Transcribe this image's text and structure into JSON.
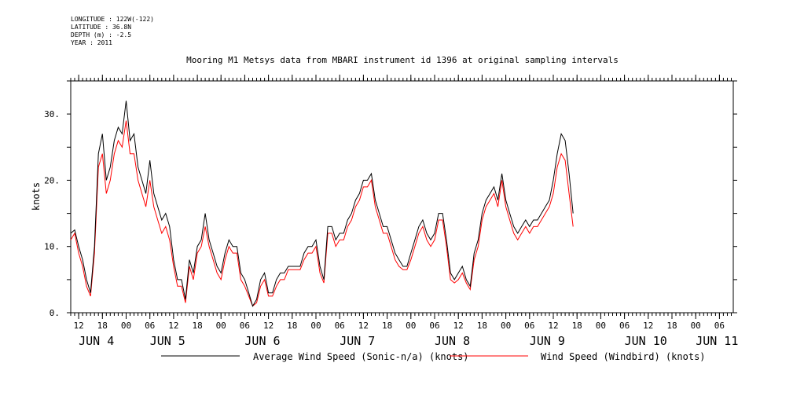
{
  "metadata": {
    "longitude": "LONGITUDE : 122W(-122)",
    "latitude": "LATITUDE : 36.8N",
    "depth": "DEPTH (m) : -2.5",
    "year": "YEAR : 2011"
  },
  "chart_data": {
    "type": "line",
    "title": "Mooring M1 Metsys data from MBARI instrument id 1396 at original sampling intervals",
    "ylabel": "knots",
    "xlabel": "",
    "ylim": [
      0,
      35
    ],
    "yticks": [
      0,
      10,
      20,
      30
    ],
    "ytick_labels": [
      "0.",
      "10.",
      "20.",
      "30."
    ],
    "xlim_hours": [
      -14,
      113
    ],
    "x_units": "hours relative to JUN 4 00:00, 2011",
    "hour_ticks": [
      {
        "h": -12,
        "label": "12"
      },
      {
        "h": -6,
        "label": "18"
      },
      {
        "h": 0,
        "label": "00"
      },
      {
        "h": 6,
        "label": "06"
      },
      {
        "h": 12,
        "label": "12"
      },
      {
        "h": 18,
        "label": "18"
      },
      {
        "h": 24,
        "label": "00"
      },
      {
        "h": 30,
        "label": "06"
      },
      {
        "h": 36,
        "label": "12"
      },
      {
        "h": 42,
        "label": "18"
      },
      {
        "h": 48,
        "label": "00"
      },
      {
        "h": 54,
        "label": "06"
      },
      {
        "h": 60,
        "label": "12"
      },
      {
        "h": 66,
        "label": "18"
      },
      {
        "h": 72,
        "label": "00"
      },
      {
        "h": 78,
        "label": "06"
      },
      {
        "h": 84,
        "label": "12"
      },
      {
        "h": 90,
        "label": "18"
      },
      {
        "h": 96,
        "label": "00"
      },
      {
        "h": 102,
        "label": "06"
      },
      {
        "h": 108,
        "label": "12"
      },
      {
        "h": 114,
        "label": "18"
      },
      {
        "h": 120,
        "label": "00"
      },
      {
        "h": 126,
        "label": "06"
      },
      {
        "h": 132,
        "label": "12"
      },
      {
        "h": 138,
        "label": "18"
      },
      {
        "h": 144,
        "label": "00"
      },
      {
        "h": 150,
        "label": "06"
      }
    ],
    "day_labels": [
      {
        "h": -12,
        "label": "JUN  4"
      },
      {
        "h": 6,
        "label": "JUN  5"
      },
      {
        "h": 30,
        "label": "JUN  6"
      },
      {
        "h": 54,
        "label": "JUN  7"
      },
      {
        "h": 78,
        "label": "JUN  8"
      },
      {
        "h": 102,
        "label": "JUN  9"
      },
      {
        "h": 126,
        "label": "JUN 10"
      },
      {
        "h": 144,
        "label": "JUN 11"
      }
    ],
    "series": [
      {
        "name": "Average Wind Speed (Sonic-n/a) (knots)",
        "color": "#000000",
        "points": [
          [
            -14,
            12
          ],
          [
            -13,
            12.5
          ],
          [
            -12,
            10
          ],
          [
            -11,
            8
          ],
          [
            -10,
            5
          ],
          [
            -9,
            3
          ],
          [
            -8,
            10
          ],
          [
            -7,
            24
          ],
          [
            -6,
            27
          ],
          [
            -5,
            20
          ],
          [
            -4,
            22
          ],
          [
            -3,
            26
          ],
          [
            -2,
            28
          ],
          [
            -1,
            27
          ],
          [
            0,
            32
          ],
          [
            1,
            26
          ],
          [
            2,
            27
          ],
          [
            3,
            22
          ],
          [
            4,
            20
          ],
          [
            5,
            18
          ],
          [
            6,
            23
          ],
          [
            7,
            18
          ],
          [
            8,
            16
          ],
          [
            9,
            14
          ],
          [
            10,
            15
          ],
          [
            11,
            13
          ],
          [
            12,
            8
          ],
          [
            13,
            5
          ],
          [
            14,
            5
          ],
          [
            15,
            2
          ],
          [
            16,
            8
          ],
          [
            17,
            6
          ],
          [
            18,
            10
          ],
          [
            19,
            11
          ],
          [
            20,
            15
          ],
          [
            21,
            11
          ],
          [
            22,
            9
          ],
          [
            23,
            7
          ],
          [
            24,
            6
          ],
          [
            25,
            9
          ],
          [
            26,
            11
          ],
          [
            27,
            10
          ],
          [
            28,
            10
          ],
          [
            29,
            6
          ],
          [
            30,
            5
          ],
          [
            31,
            3
          ],
          [
            32,
            1
          ],
          [
            33,
            2
          ],
          [
            34,
            5
          ],
          [
            35,
            6
          ],
          [
            36,
            3
          ],
          [
            37,
            3
          ],
          [
            38,
            5
          ],
          [
            39,
            6
          ],
          [
            40,
            6
          ],
          [
            41,
            7
          ],
          [
            42,
            7
          ],
          [
            43,
            7
          ],
          [
            44,
            7
          ],
          [
            45,
            9
          ],
          [
            46,
            10
          ],
          [
            47,
            10
          ],
          [
            48,
            11
          ],
          [
            49,
            7
          ],
          [
            50,
            5
          ],
          [
            51,
            13
          ],
          [
            52,
            13
          ],
          [
            53,
            11
          ],
          [
            54,
            12
          ],
          [
            55,
            12
          ],
          [
            56,
            14
          ],
          [
            57,
            15
          ],
          [
            58,
            17
          ],
          [
            59,
            18
          ],
          [
            60,
            20
          ],
          [
            61,
            20
          ],
          [
            62,
            21
          ],
          [
            63,
            17
          ],
          [
            64,
            15
          ],
          [
            65,
            13
          ],
          [
            66,
            13
          ],
          [
            67,
            11
          ],
          [
            68,
            9
          ],
          [
            69,
            8
          ],
          [
            70,
            7
          ],
          [
            71,
            7
          ],
          [
            72,
            9
          ],
          [
            73,
            11
          ],
          [
            74,
            13
          ],
          [
            75,
            14
          ],
          [
            76,
            12
          ],
          [
            77,
            11
          ],
          [
            78,
            12
          ],
          [
            79,
            15
          ],
          [
            80,
            15
          ],
          [
            81,
            11
          ],
          [
            82,
            6
          ],
          [
            83,
            5
          ],
          [
            84,
            6
          ],
          [
            85,
            7
          ],
          [
            86,
            5
          ],
          [
            87,
            4
          ],
          [
            88,
            9
          ],
          [
            89,
            11
          ],
          [
            90,
            15
          ],
          [
            91,
            17
          ],
          [
            92,
            18
          ],
          [
            93,
            19
          ],
          [
            94,
            17
          ],
          [
            95,
            21
          ],
          [
            96,
            17
          ],
          [
            97,
            15
          ],
          [
            98,
            13
          ],
          [
            99,
            12
          ],
          [
            100,
            13
          ],
          [
            101,
            14
          ],
          [
            102,
            13
          ],
          [
            103,
            14
          ],
          [
            104,
            14
          ],
          [
            105,
            15
          ],
          [
            106,
            16
          ],
          [
            107,
            17
          ],
          [
            108,
            20
          ],
          [
            109,
            24
          ],
          [
            110,
            27
          ],
          [
            111,
            26
          ],
          [
            112,
            21
          ],
          [
            113,
            15
          ]
        ]
      },
      {
        "name": "Wind Speed (Windbird) (knots)",
        "color": "#ff0000",
        "points": [
          [
            -14,
            11
          ],
          [
            -13,
            12
          ],
          [
            -12,
            9
          ],
          [
            -11,
            7
          ],
          [
            -10,
            4
          ],
          [
            -9,
            2.5
          ],
          [
            -8,
            9
          ],
          [
            -7,
            22
          ],
          [
            -6,
            24
          ],
          [
            -5,
            18
          ],
          [
            -4,
            20
          ],
          [
            -3,
            24
          ],
          [
            -2,
            26
          ],
          [
            -1,
            25
          ],
          [
            0,
            29
          ],
          [
            1,
            24
          ],
          [
            2,
            24
          ],
          [
            3,
            20
          ],
          [
            4,
            18
          ],
          [
            5,
            16
          ],
          [
            6,
            20
          ],
          [
            7,
            16
          ],
          [
            8,
            14
          ],
          [
            9,
            12
          ],
          [
            10,
            13
          ],
          [
            11,
            11
          ],
          [
            12,
            7
          ],
          [
            13,
            4
          ],
          [
            14,
            4
          ],
          [
            15,
            1.5
          ],
          [
            16,
            7
          ],
          [
            17,
            5
          ],
          [
            18,
            9
          ],
          [
            19,
            10
          ],
          [
            20,
            13
          ],
          [
            21,
            10
          ],
          [
            22,
            8
          ],
          [
            23,
            6
          ],
          [
            24,
            5
          ],
          [
            25,
            8
          ],
          [
            26,
            10
          ],
          [
            27,
            9
          ],
          [
            28,
            9
          ],
          [
            29,
            5
          ],
          [
            30,
            4
          ],
          [
            31,
            2.5
          ],
          [
            32,
            1
          ],
          [
            33,
            1.5
          ],
          [
            34,
            4
          ],
          [
            35,
            5
          ],
          [
            36,
            2.5
          ],
          [
            37,
            2.5
          ],
          [
            38,
            4
          ],
          [
            39,
            5
          ],
          [
            40,
            5
          ],
          [
            41,
            6.5
          ],
          [
            42,
            6.5
          ],
          [
            43,
            6.5
          ],
          [
            44,
            6.5
          ],
          [
            45,
            8
          ],
          [
            46,
            9
          ],
          [
            47,
            9
          ],
          [
            48,
            10
          ],
          [
            49,
            6
          ],
          [
            50,
            4.5
          ],
          [
            51,
            12
          ],
          [
            52,
            12
          ],
          [
            53,
            10
          ],
          [
            54,
            11
          ],
          [
            55,
            11
          ],
          [
            56,
            13
          ],
          [
            57,
            14
          ],
          [
            58,
            16
          ],
          [
            59,
            17
          ],
          [
            60,
            19
          ],
          [
            61,
            19
          ],
          [
            62,
            20
          ],
          [
            63,
            16
          ],
          [
            64,
            14
          ],
          [
            65,
            12
          ],
          [
            66,
            12
          ],
          [
            67,
            10
          ],
          [
            68,
            8
          ],
          [
            69,
            7
          ],
          [
            70,
            6.5
          ],
          [
            71,
            6.5
          ],
          [
            72,
            8
          ],
          [
            73,
            10
          ],
          [
            74,
            12
          ],
          [
            75,
            13
          ],
          [
            76,
            11
          ],
          [
            77,
            10
          ],
          [
            78,
            11
          ],
          [
            79,
            14
          ],
          [
            80,
            14
          ],
          [
            81,
            10
          ],
          [
            82,
            5
          ],
          [
            83,
            4.5
          ],
          [
            84,
            5
          ],
          [
            85,
            6
          ],
          [
            86,
            4.5
          ],
          [
            87,
            3.5
          ],
          [
            88,
            8
          ],
          [
            89,
            10
          ],
          [
            90,
            14
          ],
          [
            91,
            16
          ],
          [
            92,
            17
          ],
          [
            93,
            18
          ],
          [
            94,
            16
          ],
          [
            95,
            20
          ],
          [
            96,
            16
          ],
          [
            97,
            14
          ],
          [
            98,
            12
          ],
          [
            99,
            11
          ],
          [
            100,
            12
          ],
          [
            101,
            13
          ],
          [
            102,
            12
          ],
          [
            103,
            13
          ],
          [
            104,
            13
          ],
          [
            105,
            14
          ],
          [
            106,
            15
          ],
          [
            107,
            16
          ],
          [
            108,
            18
          ],
          [
            109,
            22
          ],
          [
            110,
            24
          ],
          [
            111,
            23
          ],
          [
            112,
            18
          ],
          [
            113,
            13
          ]
        ]
      }
    ]
  }
}
